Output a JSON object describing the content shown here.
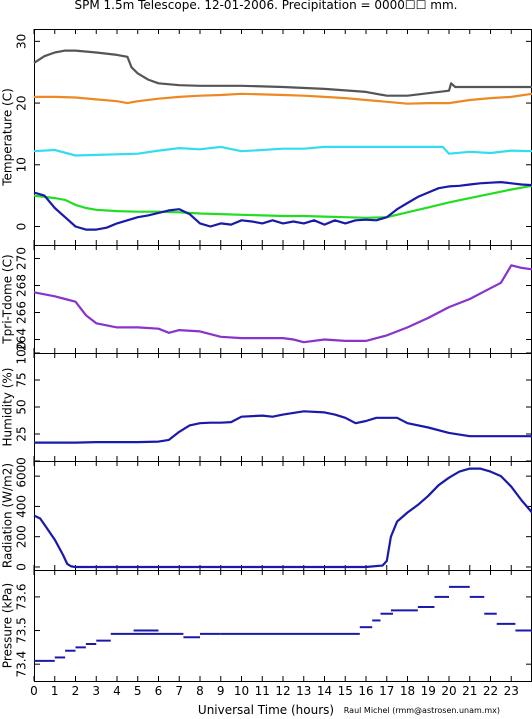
{
  "header": {
    "title": "SPM 1.5m Telescope. 12-01-2006. Precipitation = 0000☐☐ mm.",
    "credit": "Raul Michel (rmm@astrosen.unam.mx)"
  },
  "colors": {
    "dark_gray": "#555555",
    "orange": "#ee8822",
    "cyan": "#33ddee",
    "green": "#22dd22",
    "blue": "#1a1aaa",
    "purple": "#8833cc",
    "axis": "#000000"
  },
  "chart_data": [
    {
      "type": "line",
      "panel": "temperature",
      "ylabel": "Temperature (C)",
      "xlim": [
        0,
        24
      ],
      "ylim": [
        -3,
        32
      ],
      "yticks": [
        0,
        10,
        20,
        30
      ],
      "series": [
        {
          "color": "#555555",
          "x": [
            0,
            0.5,
            1,
            1.5,
            2,
            3,
            4,
            4.5,
            4.7,
            5,
            5.5,
            6,
            7,
            8,
            10,
            12,
            14,
            16,
            17,
            18,
            19,
            20,
            20.1,
            20.3,
            21,
            22,
            23,
            24
          ],
          "y": [
            26.5,
            27.6,
            28.2,
            28.5,
            28.5,
            28.2,
            27.8,
            27.5,
            25.8,
            24.8,
            23.8,
            23.2,
            22.9,
            22.8,
            22.8,
            22.6,
            22.3,
            21.8,
            21.2,
            21.2,
            21.6,
            22,
            23.2,
            22.6,
            22.6,
            22.6,
            22.6,
            22.6
          ]
        },
        {
          "color": "#ee8822",
          "x": [
            0,
            1,
            2,
            3,
            4,
            4.5,
            5,
            6,
            7,
            8,
            9,
            10,
            11,
            12,
            13,
            14,
            15,
            16,
            17,
            18,
            19,
            20,
            21,
            22,
            23,
            24
          ],
          "y": [
            21,
            21,
            20.9,
            20.6,
            20.3,
            20,
            20.3,
            20.7,
            21,
            21.2,
            21.3,
            21.5,
            21.4,
            21.3,
            21.2,
            21,
            20.8,
            20.5,
            20.2,
            19.9,
            20,
            20,
            20.5,
            20.8,
            21,
            21.5
          ]
        },
        {
          "color": "#33ddee",
          "x": [
            0,
            1,
            2,
            3,
            4,
            5,
            6,
            7,
            8,
            9,
            10,
            11,
            12,
            13,
            14,
            15,
            16,
            17,
            18,
            19,
            19.7,
            20,
            21,
            22,
            23,
            24
          ],
          "y": [
            12.2,
            12.4,
            11.5,
            11.6,
            11.7,
            11.8,
            12.3,
            12.7,
            12.5,
            12.9,
            12.2,
            12.4,
            12.6,
            12.6,
            12.9,
            12.9,
            12.9,
            12.9,
            12.9,
            12.9,
            12.9,
            11.8,
            12.1,
            11.9,
            12.3,
            12.2
          ]
        },
        {
          "color": "#22dd22",
          "x": [
            0,
            0.5,
            1,
            1.5,
            2,
            2.5,
            3,
            4,
            5,
            6,
            7,
            8,
            9,
            10,
            11,
            12,
            13,
            14,
            15,
            16,
            17,
            18,
            19,
            20,
            21,
            22,
            23,
            24
          ],
          "y": [
            5,
            4.8,
            4.6,
            4.3,
            3.5,
            3,
            2.7,
            2.5,
            2.4,
            2.4,
            2.3,
            2.1,
            2,
            1.9,
            1.8,
            1.7,
            1.7,
            1.6,
            1.5,
            1.4,
            1.5,
            2.3,
            3.1,
            3.9,
            4.6,
            5.3,
            6,
            6.6
          ]
        },
        {
          "color": "#1a1aaa",
          "x": [
            0,
            0.5,
            1,
            1.5,
            2,
            2.5,
            3,
            3.5,
            4,
            4.5,
            5,
            5.5,
            6,
            6.5,
            7,
            7.5,
            8,
            8.5,
            9,
            9.5,
            10,
            10.5,
            11,
            11.5,
            12,
            12.5,
            13,
            13.5,
            14,
            14.5,
            15,
            15.5,
            16,
            16.5,
            17,
            17.5,
            18,
            18.5,
            19,
            19.5,
            20,
            20.5,
            21,
            21.5,
            22,
            22.5,
            23,
            23.5,
            24
          ],
          "y": [
            5.5,
            5,
            3,
            1.5,
            0,
            -0.5,
            -0.5,
            -0.2,
            0.5,
            1,
            1.5,
            1.8,
            2.2,
            2.6,
            2.8,
            2,
            0.5,
            0,
            0.5,
            0.3,
            1,
            0.8,
            0.5,
            1,
            0.5,
            0.8,
            0.5,
            1,
            0.3,
            1,
            0.5,
            1,
            1.1,
            1,
            1.5,
            2.8,
            3.8,
            4.8,
            5.5,
            6.2,
            6.5,
            6.6,
            6.8,
            7,
            7.1,
            7.2,
            7,
            6.8,
            6.7
          ]
        }
      ]
    },
    {
      "type": "line",
      "panel": "tpri-tdome",
      "ylabel": "Tpri-Tdome (C)",
      "xlim": [
        0,
        24
      ],
      "ylim": [
        263,
        271
      ],
      "yticks": [
        264,
        266,
        268,
        270
      ],
      "series": [
        {
          "color": "#8833cc",
          "x": [
            0,
            1,
            1.5,
            2,
            2.5,
            3,
            4,
            5,
            6,
            6.5,
            7,
            8,
            9,
            10,
            11,
            12,
            12.5,
            13,
            14,
            15,
            16,
            17,
            18,
            19,
            20,
            21,
            22,
            22.5,
            23,
            23.5,
            24
          ],
          "y": [
            267.5,
            267.2,
            267,
            266.8,
            265.8,
            265.2,
            264.9,
            264.9,
            264.8,
            264.5,
            264.7,
            264.6,
            264.2,
            264.1,
            264.1,
            264.1,
            264,
            263.8,
            264,
            263.9,
            263.9,
            264.3,
            264.9,
            265.6,
            266.4,
            267,
            267.8,
            268.2,
            269.5,
            269.3,
            269.2
          ]
        }
      ]
    },
    {
      "type": "line",
      "panel": "humidity",
      "ylabel": "Humidity (%)",
      "xlim": [
        0,
        24
      ],
      "ylim": [
        0,
        100
      ],
      "yticks": [
        0,
        25,
        50,
        75,
        100
      ],
      "series": [
        {
          "color": "#1a1aaa",
          "x": [
            0,
            1,
            2,
            3,
            4,
            5,
            6,
            6.5,
            7,
            7.5,
            8,
            8.5,
            9,
            9.5,
            10,
            11,
            11.5,
            12,
            13,
            14,
            14.5,
            15,
            15.5,
            16,
            16.5,
            17,
            17.5,
            18,
            19,
            20,
            21,
            22,
            23,
            24
          ],
          "y": [
            17,
            17,
            17,
            17.5,
            17.5,
            17.5,
            18,
            19.5,
            27,
            33,
            35,
            35.5,
            35.5,
            36,
            41,
            42,
            41,
            43,
            46,
            45,
            43,
            40,
            35,
            37,
            40,
            40,
            40,
            35,
            31,
            26,
            23,
            23,
            23,
            23
          ]
        }
      ]
    },
    {
      "type": "line",
      "panel": "radiation",
      "ylabel": "Radiation (W/m2)",
      "xlim": [
        0,
        24
      ],
      "ylim": [
        -20,
        700
      ],
      "yticks": [
        0,
        200,
        400,
        600
      ],
      "series": [
        {
          "color": "#1a1aaa",
          "x": [
            0,
            0.3,
            0.6,
            1,
            1.4,
            1.6,
            1.8,
            2,
            4,
            6,
            8,
            10,
            12,
            14,
            16,
            16.8,
            17,
            17.2,
            17.5,
            18,
            18.5,
            19,
            19.5,
            20,
            20.5,
            21,
            21.5,
            22,
            22.5,
            23,
            23.5,
            24
          ],
          "y": [
            340,
            320,
            260,
            180,
            80,
            20,
            4,
            0,
            0,
            0,
            0,
            0,
            0,
            0,
            0,
            10,
            40,
            200,
            300,
            360,
            410,
            470,
            540,
            590,
            630,
            650,
            650,
            630,
            600,
            530,
            440,
            360
          ]
        }
      ]
    },
    {
      "type": "scatter",
      "panel": "pressure",
      "ylabel": "Pressure (kPa)",
      "xlabel": "Universal Time (hours)",
      "xlim": [
        0,
        24
      ],
      "ylim": [
        73.35,
        73.68
      ],
      "yticks": [
        73.4,
        73.5,
        73.6
      ],
      "xticks": [
        0,
        1,
        2,
        3,
        4,
        5,
        6,
        7,
        8,
        9,
        10,
        11,
        12,
        13,
        14,
        15,
        16,
        17,
        18,
        19,
        20,
        21,
        22,
        23
      ],
      "segments": [
        {
          "x1": 0,
          "x2": 1,
          "y": 73.41
        },
        {
          "x1": 1,
          "x2": 1.5,
          "y": 73.42
        },
        {
          "x1": 1.5,
          "x2": 2,
          "y": 73.44
        },
        {
          "x1": 2,
          "x2": 2.5,
          "y": 73.45
        },
        {
          "x1": 2.5,
          "x2": 3,
          "y": 73.46
        },
        {
          "x1": 3,
          "x2": 3.7,
          "y": 73.47
        },
        {
          "x1": 3.7,
          "x2": 7.2,
          "y": 73.49
        },
        {
          "x1": 4.8,
          "x2": 6,
          "y": 73.5
        },
        {
          "x1": 7.2,
          "x2": 8,
          "y": 73.48
        },
        {
          "x1": 8,
          "x2": 9,
          "y": 73.49
        },
        {
          "x1": 9,
          "x2": 10,
          "y": 73.49
        },
        {
          "x1": 10,
          "x2": 15.7,
          "y": 73.49
        },
        {
          "x1": 15.7,
          "x2": 16.3,
          "y": 73.51
        },
        {
          "x1": 16.3,
          "x2": 16.7,
          "y": 73.53
        },
        {
          "x1": 16.7,
          "x2": 17.3,
          "y": 73.55
        },
        {
          "x1": 17.2,
          "x2": 18.5,
          "y": 73.56
        },
        {
          "x1": 18.5,
          "x2": 19.3,
          "y": 73.57
        },
        {
          "x1": 19.3,
          "x2": 20,
          "y": 73.6
        },
        {
          "x1": 20,
          "x2": 21,
          "y": 73.63
        },
        {
          "x1": 21,
          "x2": 21.7,
          "y": 73.6
        },
        {
          "x1": 21.7,
          "x2": 22.3,
          "y": 73.55
        },
        {
          "x1": 22.3,
          "x2": 23.2,
          "y": 73.52
        },
        {
          "x1": 23.2,
          "x2": 24,
          "y": 73.5
        }
      ]
    }
  ]
}
